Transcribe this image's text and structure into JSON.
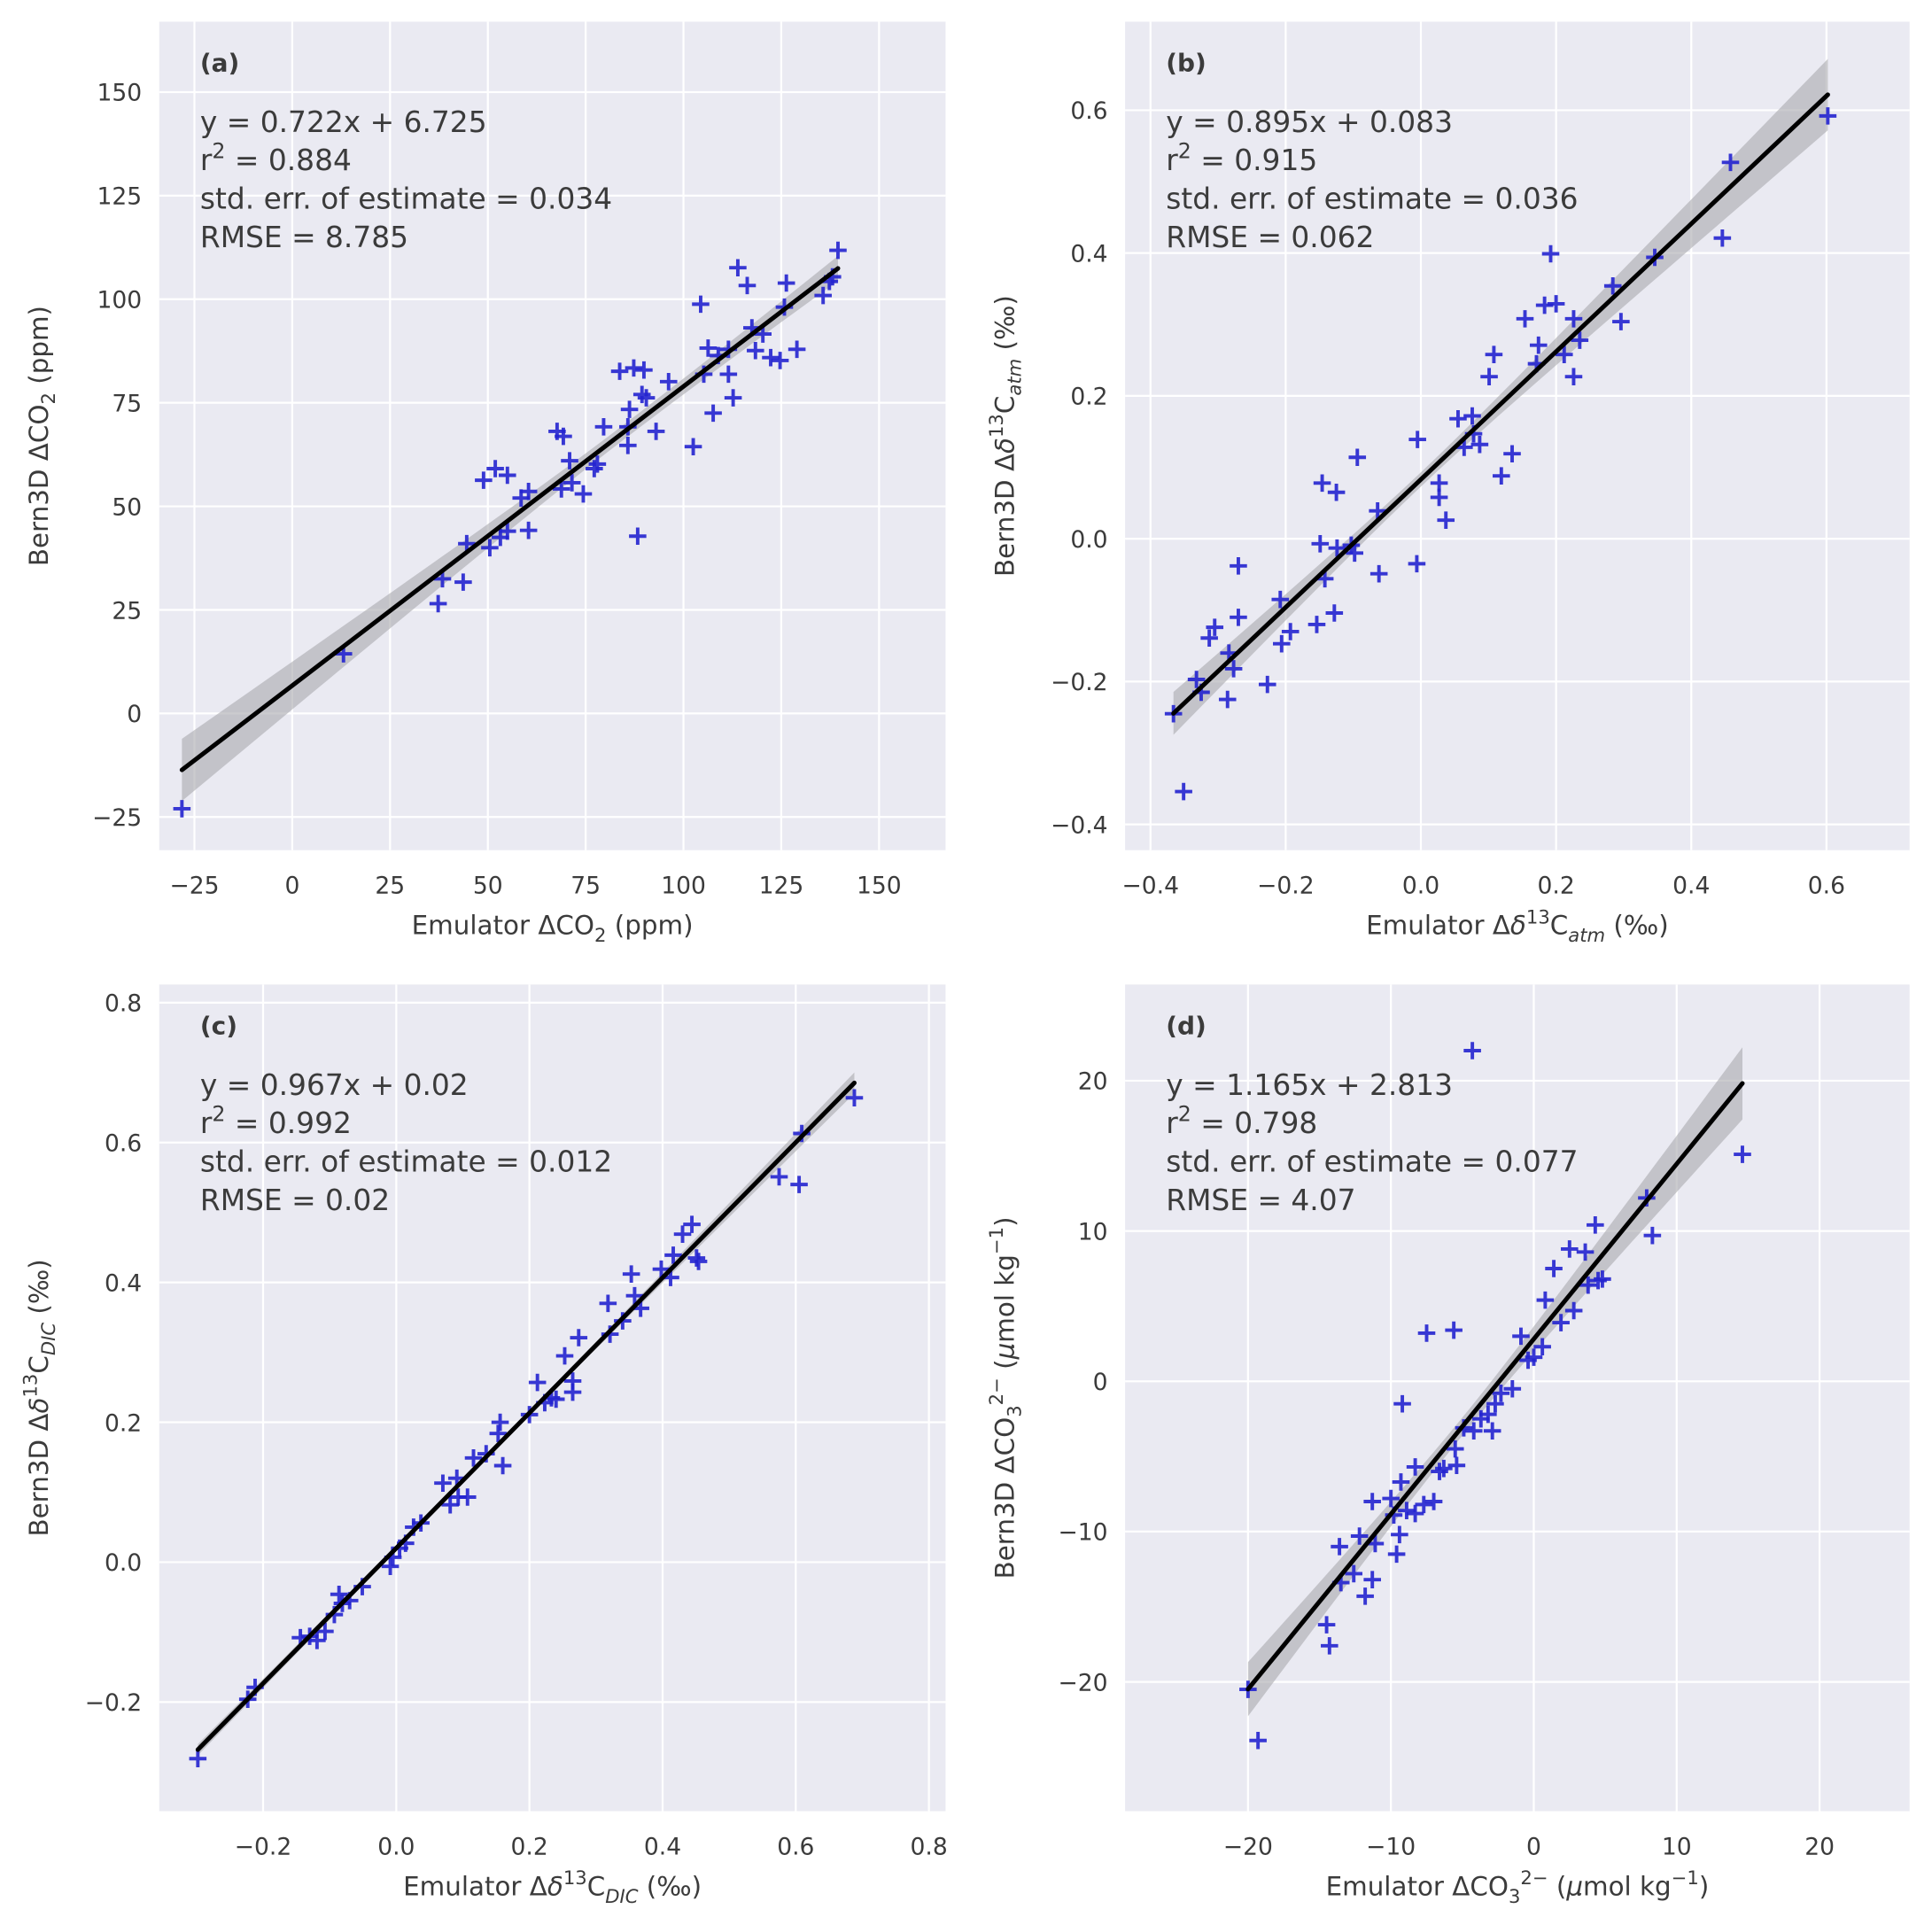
{
  "style": {
    "background": "#EAEAF2",
    "grid": "#FFFFFF",
    "point_color": "#2424CF",
    "fit_color": "#000000",
    "band_color": "#A8A8AE"
  },
  "chart_data": [
    {
      "panel": "(a)",
      "type": "scatter",
      "xlim": [
        -34,
        167
      ],
      "ylim": [
        -33,
        167
      ],
      "xticks": [
        -25,
        0,
        25,
        50,
        75,
        100,
        125,
        150
      ],
      "xtick_labels": [
        "−25",
        "0",
        "25",
        "50",
        "75",
        "100",
        "125",
        "150"
      ],
      "yticks": [
        -25,
        0,
        25,
        50,
        75,
        100,
        125,
        150
      ],
      "ytick_labels": [
        "−25",
        "0",
        "25",
        "50",
        "75",
        "100",
        "125",
        "150"
      ],
      "xlabel": [
        {
          "t": "Emulator ΔCO"
        },
        {
          "t": "2",
          "s": "sub"
        },
        {
          "t": " (ppm)"
        }
      ],
      "ylabel": [
        {
          "t": "Bern3D ΔCO"
        },
        {
          "t": "2",
          "s": "sub"
        },
        {
          "t": " (ppm)"
        }
      ],
      "stats": [
        [
          {
            "t": "y = 0.722x + 6.725"
          }
        ],
        [
          {
            "t": "r"
          },
          {
            "t": "2",
            "s": "sup"
          },
          {
            "t": " = 0.884"
          }
        ],
        [
          {
            "t": "std. err. of estimate = 0.034"
          }
        ],
        [
          {
            "t": "RMSE = 8.785"
          }
        ]
      ],
      "fit": {
        "slope": 0.722,
        "intercept": 6.725,
        "x_range": [
          -28.2,
          139.5
        ]
      },
      "ci_band": {
        "x": [
          -28.2,
          85,
          139.5
        ],
        "halfwidth": [
          7.5,
          1.8,
          3.0
        ]
      },
      "points": {
        "x": [
          -28.2,
          13.1,
          37.3,
          38.4,
          43.7,
          44.6,
          48.9,
          50.5,
          51.9,
          55.0,
          53.2,
          55.0,
          58.5,
          60.4,
          60.4,
          67.7,
          69.3,
          68.8,
          70.9,
          71.5,
          74.4,
          77.2,
          78.0,
          79.6,
          83.7,
          85.8,
          86.2,
          85.8,
          87.3,
          89.9,
          88.3,
          89.4,
          90.5,
          93.0,
          96.2,
          102.5,
          104.4,
          105.2,
          106.3,
          107.6,
          108.9,
          111.5,
          111.5,
          112.7,
          113.9,
          116.3,
          117.5,
          118.4,
          120.3,
          122.3,
          124.7,
          125.8,
          126.3,
          129.0,
          135.7,
          137.3,
          138.1,
          139.5
        ],
        "y": [
          -23.0,
          14.4,
          26.5,
          32.5,
          31.7,
          41.0,
          56.3,
          40.0,
          59.1,
          57.5,
          42.5,
          44.0,
          52.0,
          53.6,
          44.2,
          68.1,
          66.9,
          54.2,
          61.0,
          55.7,
          53.0,
          59.1,
          60.2,
          69.2,
          82.6,
          64.7,
          73.4,
          69.2,
          83.4,
          82.9,
          42.8,
          77.0,
          76.2,
          68.1,
          80.1,
          64.4,
          98.8,
          81.9,
          88.2,
          72.5,
          86.4,
          87.9,
          81.9,
          76.2,
          107.6,
          103.3,
          93.1,
          87.6,
          91.6,
          85.9,
          85.2,
          98.1,
          103.9,
          87.9,
          100.9,
          104.3,
          105.4,
          111.8
        ]
      }
    },
    {
      "panel": "(b)",
      "type": "scatter",
      "xlim": [
        -0.4375,
        0.723
      ],
      "ylim": [
        -0.436,
        0.724
      ],
      "xticks": [
        -0.4,
        -0.2,
        0.0,
        0.2,
        0.4,
        0.6
      ],
      "xtick_labels": [
        "−0.4",
        "−0.2",
        "0.0",
        "0.2",
        "0.4",
        "0.6"
      ],
      "yticks": [
        -0.4,
        -0.2,
        0.0,
        0.2,
        0.4,
        0.6
      ],
      "ytick_labels": [
        "−0.4",
        "−0.2",
        "0.0",
        "0.2",
        "0.4",
        "0.6"
      ],
      "xlabel": [
        {
          "t": "Emulator Δ"
        },
        {
          "t": "δ",
          "s": "it"
        },
        {
          "t": "13",
          "s": "sup"
        },
        {
          "t": "C"
        },
        {
          "t": "atm",
          "s": "sub it"
        },
        {
          "t": " (‰)"
        }
      ],
      "ylabel": [
        {
          "t": "Bern3D Δ"
        },
        {
          "t": "δ",
          "s": "it"
        },
        {
          "t": "13",
          "s": "sup"
        },
        {
          "t": "C"
        },
        {
          "t": "atm",
          "s": "sub it"
        },
        {
          "t": " (‰)"
        }
      ],
      "stats": [
        [
          {
            "t": "y = 0.895x + 0.083"
          }
        ],
        [
          {
            "t": "r"
          },
          {
            "t": "2",
            "s": "sup"
          },
          {
            "t": " = 0.915"
          }
        ],
        [
          {
            "t": "std. err. of estimate = 0.036"
          }
        ],
        [
          {
            "t": "RMSE = 0.062"
          }
        ]
      ],
      "fit": {
        "slope": 0.895,
        "intercept": 0.083,
        "x_range": [
          -0.366,
          0.602
        ]
      },
      "ci_band": {
        "x": [
          -0.366,
          0.0,
          0.602
        ],
        "halfwidth": [
          0.03,
          0.01,
          0.05
        ]
      },
      "points": {
        "x": [
          -0.366,
          -0.351,
          -0.332,
          -0.325,
          -0.313,
          -0.305,
          -0.286,
          -0.284,
          -0.277,
          -0.27,
          -0.27,
          -0.227,
          -0.208,
          -0.206,
          -0.193,
          -0.154,
          -0.149,
          -0.146,
          -0.142,
          -0.128,
          -0.125,
          -0.124,
          -0.103,
          -0.098,
          -0.094,
          -0.064,
          -0.062,
          -0.006,
          -0.005,
          0.027,
          0.027,
          0.037,
          0.055,
          0.064,
          0.076,
          0.078,
          0.087,
          0.101,
          0.108,
          0.119,
          0.135,
          0.154,
          0.174,
          0.171,
          0.183,
          0.192,
          0.2,
          0.212,
          0.226,
          0.226,
          0.235,
          0.284,
          0.296,
          0.346,
          0.446,
          0.458,
          0.602
        ],
        "y": [
          -0.245,
          -0.354,
          -0.197,
          -0.215,
          -0.139,
          -0.124,
          -0.225,
          -0.16,
          -0.182,
          -0.11,
          -0.038,
          -0.204,
          -0.085,
          -0.147,
          -0.13,
          -0.12,
          -0.007,
          0.078,
          -0.056,
          -0.104,
          0.065,
          -0.013,
          -0.009,
          -0.02,
          0.114,
          0.039,
          -0.049,
          -0.035,
          0.139,
          0.078,
          0.058,
          0.026,
          0.168,
          0.128,
          0.172,
          0.147,
          0.132,
          0.227,
          0.258,
          0.088,
          0.119,
          0.308,
          0.271,
          0.245,
          0.327,
          0.399,
          0.329,
          0.258,
          0.308,
          0.227,
          0.278,
          0.354,
          0.304,
          0.394,
          0.421,
          0.527,
          0.592
        ]
      }
    },
    {
      "panel": "(c)",
      "type": "scatter",
      "xlim": [
        -0.356,
        0.825
      ],
      "ylim": [
        -0.356,
        0.826
      ],
      "xticks": [
        -0.2,
        0.0,
        0.2,
        0.4,
        0.6,
        0.8
      ],
      "xtick_labels": [
        "−0.2",
        "0.0",
        "0.2",
        "0.4",
        "0.6",
        "0.8"
      ],
      "yticks": [
        -0.2,
        0.0,
        0.2,
        0.4,
        0.6,
        0.8
      ],
      "ytick_labels": [
        "−0.2",
        "0.0",
        "0.2",
        "0.4",
        "0.6",
        "0.8"
      ],
      "xlabel": [
        {
          "t": "Emulator Δ"
        },
        {
          "t": "δ",
          "s": "it"
        },
        {
          "t": "13",
          "s": "sup"
        },
        {
          "t": "C"
        },
        {
          "t": "DIC",
          "s": "sub it"
        },
        {
          "t": " (‰)"
        }
      ],
      "ylabel": [
        {
          "t": "Bern3D Δ"
        },
        {
          "t": "δ",
          "s": "it"
        },
        {
          "t": "13",
          "s": "sup"
        },
        {
          "t": "C"
        },
        {
          "t": "DIC",
          "s": "sub it"
        },
        {
          "t": " (‰)"
        }
      ],
      "stats": [
        [
          {
            "t": "y = 0.967x + 0.02"
          }
        ],
        [
          {
            "t": "r"
          },
          {
            "t": "2",
            "s": "sup"
          },
          {
            "t": " = 0.992"
          }
        ],
        [
          {
            "t": "std. err. of estimate = 0.012"
          }
        ],
        [
          {
            "t": "RMSE = 0.02"
          }
        ]
      ],
      "fit": {
        "slope": 0.967,
        "intercept": 0.02,
        "x_range": [
          -0.298,
          0.688
        ]
      },
      "ci_band": {
        "x": [
          -0.298,
          0.15,
          0.688
        ],
        "halfwidth": [
          0.008,
          0.003,
          0.015
        ]
      },
      "points": {
        "x": [
          -0.298,
          -0.223,
          -0.212,
          -0.144,
          -0.13,
          -0.119,
          -0.107,
          -0.093,
          -0.086,
          -0.081,
          -0.07,
          -0.051,
          -0.009,
          -0.005,
          0.005,
          0.014,
          0.026,
          0.037,
          0.07,
          0.081,
          0.091,
          0.093,
          0.107,
          0.116,
          0.135,
          0.153,
          0.156,
          0.16,
          0.2,
          0.212,
          0.223,
          0.233,
          0.24,
          0.253,
          0.265,
          0.265,
          0.274,
          0.318,
          0.321,
          0.34,
          0.353,
          0.358,
          0.367,
          0.398,
          0.412,
          0.416,
          0.43,
          0.444,
          0.451,
          0.454,
          0.575,
          0.605,
          0.609,
          0.688
        ],
        "y": [
          -0.281,
          -0.196,
          -0.179,
          -0.108,
          -0.106,
          -0.112,
          -0.099,
          -0.075,
          -0.046,
          -0.059,
          -0.055,
          -0.035,
          -0.006,
          0.007,
          0.02,
          0.027,
          0.05,
          0.056,
          0.113,
          0.082,
          0.12,
          0.093,
          0.093,
          0.149,
          0.155,
          0.184,
          0.2,
          0.138,
          0.211,
          0.257,
          0.228,
          0.235,
          0.233,
          0.295,
          0.259,
          0.243,
          0.321,
          0.37,
          0.326,
          0.345,
          0.412,
          0.381,
          0.363,
          0.419,
          0.407,
          0.439,
          0.469,
          0.483,
          0.435,
          0.43,
          0.551,
          0.54,
          0.613,
          0.664
        ]
      }
    },
    {
      "panel": "(d)",
      "type": "scatter",
      "xlim": [
        -28.6,
        26.3
      ],
      "ylim": [
        -28.6,
        26.4
      ],
      "xticks": [
        -20,
        -10,
        0,
        10,
        20
      ],
      "xtick_labels": [
        "−20",
        "−10",
        "0",
        "10",
        "20"
      ],
      "yticks": [
        -20,
        -10,
        0,
        10,
        20
      ],
      "ytick_labels": [
        "−20",
        "−10",
        "0",
        "10",
        "20"
      ],
      "xlabel": [
        {
          "t": "Emulator ΔCO"
        },
        {
          "t": "3",
          "s": "sub"
        },
        {
          "t": "2−",
          "s": "sup"
        },
        {
          "t": "  ("
        },
        {
          "t": "μ",
          "s": "it"
        },
        {
          "t": "mol kg"
        },
        {
          "t": "−1",
          "s": "sup"
        },
        {
          "t": ")"
        }
      ],
      "ylabel": [
        {
          "t": "Bern3D ΔCO"
        },
        {
          "t": "3",
          "s": "sub"
        },
        {
          "t": "2−",
          "s": "sup"
        },
        {
          "t": "  ("
        },
        {
          "t": "μ",
          "s": "it"
        },
        {
          "t": "mol kg"
        },
        {
          "t": "−1",
          "s": "sup"
        },
        {
          "t": ")"
        }
      ],
      "stats": [
        [
          {
            "t": "y = 1.165x + 2.813"
          }
        ],
        [
          {
            "t": "r"
          },
          {
            "t": "2",
            "s": "sup"
          },
          {
            "t": " = 0.798"
          }
        ],
        [
          {
            "t": "std. err. of estimate = 0.077"
          }
        ],
        [
          {
            "t": "RMSE = 4.07"
          }
        ]
      ],
      "fit": {
        "slope": 1.165,
        "intercept": 2.813,
        "x_range": [
          -20.0,
          14.6
        ]
      },
      "ci_band": {
        "x": [
          -20.0,
          -5.0,
          14.6
        ],
        "halfwidth": [
          1.8,
          0.6,
          2.4
        ]
      },
      "points": {
        "x": [
          -20.0,
          -19.3,
          -14.5,
          -14.3,
          -13.6,
          -13.5,
          -12.6,
          -12.2,
          -11.8,
          -11.3,
          -11.3,
          -11.1,
          -10.0,
          -9.8,
          -9.6,
          -9.4,
          -9.3,
          -9.2,
          -8.9,
          -8.3,
          -8.3,
          -7.7,
          -7.5,
          -7.0,
          -6.6,
          -6.3,
          -5.6,
          -5.5,
          -5.4,
          -4.9,
          -4.3,
          -4.2,
          -3.7,
          -3.2,
          -2.9,
          -2.7,
          -2.3,
          -1.5,
          -0.9,
          -0.4,
          0.0,
          0.6,
          0.8,
          1.4,
          1.9,
          2.5,
          2.8,
          3.6,
          3.8,
          4.3,
          4.5,
          4.8,
          7.9,
          8.3,
          14.6
        ],
        "y": [
          -20.5,
          -23.9,
          -16.2,
          -17.6,
          -11.0,
          -13.4,
          -12.8,
          -10.3,
          -14.3,
          -8.0,
          -13.2,
          -10.8,
          -7.8,
          -8.9,
          -11.5,
          -10.2,
          -6.7,
          -1.5,
          -8.6,
          -5.7,
          -8.8,
          -8.2,
          3.2,
          -8.0,
          -6.0,
          -5.8,
          3.4,
          -4.5,
          -5.6,
          -3.1,
          22.0,
          -3.3,
          -2.5,
          -2.2,
          -3.3,
          -1.5,
          -0.8,
          -0.5,
          3.0,
          1.4,
          1.6,
          2.3,
          5.4,
          7.5,
          3.9,
          8.8,
          4.7,
          8.6,
          6.4,
          10.4,
          6.7,
          6.8,
          12.2,
          9.7,
          15.1
        ]
      }
    }
  ]
}
